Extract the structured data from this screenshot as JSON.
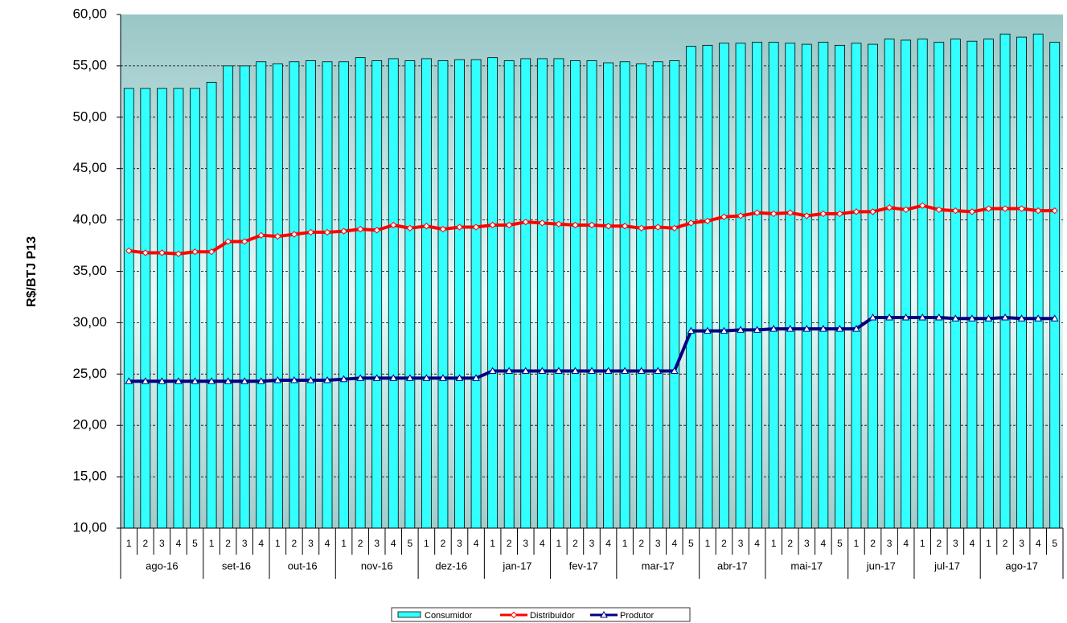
{
  "chart_data": {
    "type": "bar-line",
    "y_label": "R$/BTJ P13",
    "groups": [
      {
        "label": "ago-16",
        "categories": [
          "1",
          "2",
          "3",
          "4",
          "5"
        ]
      },
      {
        "label": "set-16",
        "categories": [
          "1",
          "2",
          "3",
          "4"
        ]
      },
      {
        "label": "out-16",
        "categories": [
          "1",
          "2",
          "3",
          "4"
        ]
      },
      {
        "label": "nov-16",
        "categories": [
          "1",
          "2",
          "3",
          "4",
          "5"
        ]
      },
      {
        "label": "dez-16",
        "categories": [
          "1",
          "2",
          "3",
          "4"
        ]
      },
      {
        "label": "jan-17",
        "categories": [
          "1",
          "2",
          "3",
          "4"
        ]
      },
      {
        "label": "fev-17",
        "categories": [
          "1",
          "2",
          "3",
          "4"
        ]
      },
      {
        "label": "mar-17",
        "categories": [
          "1",
          "2",
          "3",
          "4",
          "5"
        ]
      },
      {
        "label": "abr-17",
        "categories": [
          "1",
          "2",
          "3",
          "4"
        ]
      },
      {
        "label": "mai-17",
        "categories": [
          "1",
          "2",
          "3",
          "4",
          "5"
        ]
      },
      {
        "label": "jun-17",
        "categories": [
          "1",
          "2",
          "3",
          "4"
        ]
      },
      {
        "label": "jul-17",
        "categories": [
          "1",
          "2",
          "3",
          "4"
        ]
      },
      {
        "label": "ago-17",
        "categories": [
          "1",
          "2",
          "3",
          "4",
          "5"
        ]
      }
    ],
    "series": [
      {
        "name": "Consumidor",
        "type": "bar",
        "color": "#33ffff",
        "values": [
          52.8,
          52.8,
          52.8,
          52.8,
          52.8,
          53.4,
          55.0,
          55.0,
          55.4,
          55.2,
          55.4,
          55.5,
          55.4,
          55.4,
          55.8,
          55.5,
          55.7,
          55.5,
          55.7,
          55.5,
          55.6,
          55.6,
          55.8,
          55.5,
          55.7,
          55.7,
          55.7,
          55.5,
          55.5,
          55.3,
          55.4,
          55.2,
          55.4,
          55.5,
          56.9,
          57.0,
          57.2,
          57.2,
          57.3,
          57.3,
          57.2,
          57.1,
          57.3,
          57.0,
          57.2,
          57.1,
          57.6,
          57.5,
          57.6,
          57.3,
          57.6,
          57.4,
          57.6,
          58.1,
          57.8,
          58.1,
          57.3
        ]
      },
      {
        "name": "Distribuidor",
        "type": "line",
        "marker": "diamond",
        "color": "#ff0000",
        "values": [
          37.0,
          36.8,
          36.8,
          36.7,
          36.9,
          36.9,
          37.9,
          37.9,
          38.5,
          38.4,
          38.6,
          38.8,
          38.8,
          38.9,
          39.1,
          39.0,
          39.5,
          39.2,
          39.4,
          39.1,
          39.3,
          39.3,
          39.5,
          39.5,
          39.8,
          39.7,
          39.6,
          39.5,
          39.5,
          39.4,
          39.4,
          39.2,
          39.3,
          39.2,
          39.7,
          39.9,
          40.3,
          40.4,
          40.7,
          40.6,
          40.7,
          40.4,
          40.6,
          40.6,
          40.8,
          40.8,
          41.2,
          41.0,
          41.4,
          41.0,
          40.9,
          40.8,
          41.1,
          41.1,
          41.1,
          40.9,
          40.9
        ]
      },
      {
        "name": "Produtor",
        "type": "line",
        "marker": "triangle",
        "color": "#000080",
        "values": [
          24.3,
          24.3,
          24.3,
          24.3,
          24.3,
          24.3,
          24.3,
          24.3,
          24.3,
          24.4,
          24.4,
          24.4,
          24.4,
          24.5,
          24.6,
          24.6,
          24.6,
          24.6,
          24.6,
          24.6,
          24.6,
          24.6,
          25.3,
          25.3,
          25.3,
          25.3,
          25.3,
          25.3,
          25.3,
          25.3,
          25.3,
          25.3,
          25.3,
          25.3,
          29.2,
          29.2,
          29.2,
          29.3,
          29.3,
          29.4,
          29.4,
          29.4,
          29.4,
          29.4,
          29.4,
          30.5,
          30.5,
          30.5,
          30.5,
          30.5,
          30.4,
          30.4,
          30.4,
          30.5,
          30.4,
          30.4,
          30.4
        ]
      }
    ],
    "ylim": [
      10,
      60
    ],
    "yticks": [
      {
        "value": 10,
        "label": "10,00"
      },
      {
        "value": 15,
        "label": "15,00"
      },
      {
        "value": 20,
        "label": "20,00"
      },
      {
        "value": 25,
        "label": "25,00"
      },
      {
        "value": 30,
        "label": "30,00"
      },
      {
        "value": 35,
        "label": "35,00"
      },
      {
        "value": 40,
        "label": "40,00"
      },
      {
        "value": 45,
        "label": "45,00"
      },
      {
        "value": 50,
        "label": "50,00"
      },
      {
        "value": 55,
        "label": "55,00"
      },
      {
        "value": 60,
        "label": "60,00"
      }
    ],
    "grid": true,
    "legend": "bottom"
  }
}
